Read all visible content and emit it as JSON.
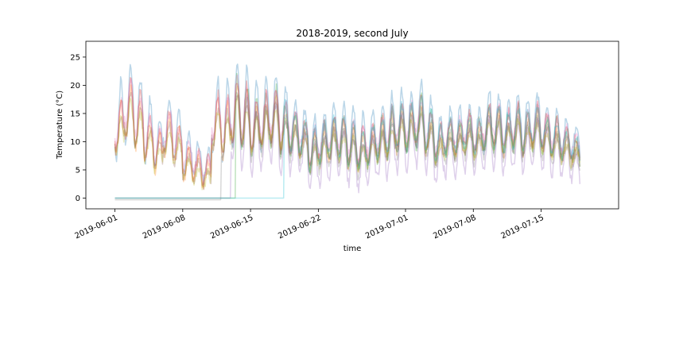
{
  "chart_data": {
    "type": "line",
    "title": "2018-2019, second July",
    "xlabel": "time",
    "ylabel": "Temperature (°C)",
    "x_start": "2019-06-01",
    "x_end": "2019-07-19",
    "xlim": [
      "2019-05-29",
      "2019-07-23"
    ],
    "ylim": [
      -1.9,
      27.8
    ],
    "x_ticks": [
      "2019-06-01",
      "2019-06-08",
      "2019-06-15",
      "2019-06-22",
      "2019-07-01",
      "2019-07-08",
      "2019-07-15"
    ],
    "y_ticks": [
      0,
      5,
      10,
      15,
      20,
      25
    ],
    "grid": false,
    "legend": "none",
    "line_alpha": 0.3,
    "colors": [
      "#1f77b4",
      "#ff7f0e",
      "#2ca02c",
      "#d62728",
      "#9467bd",
      "#8c564b",
      "#e377c2",
      "#7f7f7f",
      "#bcbd22",
      "#17becf"
    ],
    "series_profile": {
      "daily_mean": [
        12,
        15,
        13,
        10,
        8,
        11,
        9,
        6,
        5,
        4,
        13,
        12,
        15,
        14,
        12,
        13,
        14,
        12,
        11,
        10,
        8,
        9,
        10,
        10,
        9,
        8,
        9,
        10,
        11,
        12,
        12,
        13,
        11,
        9,
        10,
        10,
        11,
        10,
        12,
        12,
        11,
        12,
        11,
        12,
        11,
        10,
        9,
        8,
        7
      ],
      "daily_amplitude": [
        9,
        9,
        8,
        7,
        6,
        6,
        6,
        5,
        4,
        4,
        8,
        9,
        10,
        9,
        8,
        8,
        8,
        7,
        6,
        5,
        6,
        6,
        6,
        6,
        6,
        6,
        6,
        6,
        7,
        7,
        7,
        7,
        6,
        5,
        5,
        5,
        5,
        5,
        7,
        6,
        6,
        6,
        6,
        6,
        5,
        5,
        4,
        3,
        3
      ],
      "flat_start": [
        {
          "series": 2,
          "until_day": 12.5,
          "value": 0
        },
        {
          "series": 4,
          "until_day": 12.0,
          "value": 0
        },
        {
          "series": 9,
          "until_day": 17.5,
          "value": 0
        },
        {
          "series": 7,
          "until_day": 11.0,
          "value": -0.3
        }
      ],
      "series_offsets": [
        2.0,
        0.0,
        0.5,
        1.0,
        -2.5,
        -0.5,
        1.5,
        -1.0,
        -0.8,
        0.8
      ],
      "series_amp_scale": [
        1.4,
        0.9,
        1.1,
        1.0,
        1.2,
        0.7,
        0.8,
        0.9,
        0.6,
        1.0
      ]
    }
  }
}
